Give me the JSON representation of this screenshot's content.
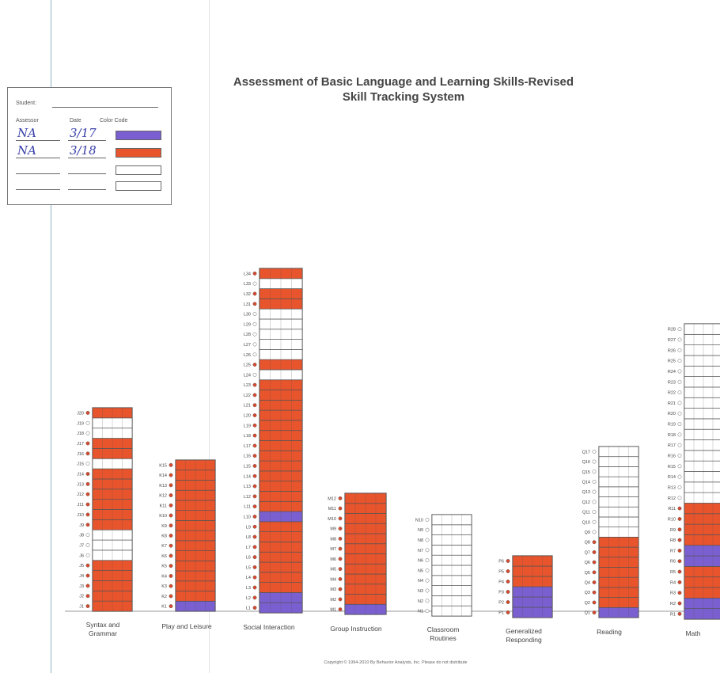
{
  "title": {
    "line1": "Assessment of Basic Language and Learning Skills-Revised",
    "line2": "Skill Tracking System"
  },
  "legend": {
    "student_label": "Student:",
    "assessor_label": "Assessor",
    "date_label": "Date",
    "color_code_label": "Color Code",
    "rows": [
      {
        "assessor": "NA",
        "date": "3/17",
        "color": "#7a5fd0"
      },
      {
        "assessor": "NA",
        "date": "3/18",
        "color": "#e8542c"
      },
      {
        "assessor": "",
        "date": "",
        "color": ""
      },
      {
        "assessor": "",
        "date": "",
        "color": ""
      }
    ]
  },
  "colors": {
    "purple": "#7a5fd0",
    "orange": "#e8542c",
    "empty": "#ffffff",
    "grid": "#555555"
  },
  "chart_data": {
    "type": "table",
    "status_codes": {
      "P": "purple (assessment 1)",
      "O": "orange (assessment 2)",
      "E": "not yet mastered"
    },
    "domains": [
      {
        "name": "Syntax and Grammar",
        "prefix": "J",
        "count": 20,
        "status": [
          "O",
          "O",
          "O",
          "O",
          "O",
          "E",
          "E",
          "E",
          "O",
          "O",
          "O",
          "O",
          "O",
          "O",
          "E",
          "O",
          "O",
          "E",
          "E",
          "O"
        ]
      },
      {
        "name": "Play and Leisure",
        "prefix": "K",
        "count": 15,
        "status": [
          "P",
          "O",
          "O",
          "O",
          "O",
          "O",
          "O",
          "O",
          "O",
          "O",
          "O",
          "O",
          "O",
          "O",
          "O"
        ]
      },
      {
        "name": "Social Interaction",
        "prefix": "L",
        "count": 34,
        "status": [
          "P",
          "P",
          "O",
          "O",
          "O",
          "O",
          "O",
          "O",
          "O",
          "P",
          "O",
          "O",
          "O",
          "O",
          "O",
          "O",
          "O",
          "O",
          "O",
          "O",
          "O",
          "O",
          "O",
          "E",
          "O",
          "E",
          "E",
          "E",
          "E",
          "E",
          "O",
          "O",
          "E",
          "O"
        ]
      },
      {
        "name": "Group Instruction",
        "prefix": "M",
        "count": 12,
        "status": [
          "P",
          "O",
          "O",
          "O",
          "O",
          "O",
          "O",
          "O",
          "O",
          "O",
          "O",
          "O"
        ]
      },
      {
        "name": "Classroom Routines",
        "prefix": "N",
        "count": 10,
        "status": [
          "E",
          "E",
          "E",
          "E",
          "E",
          "E",
          "E",
          "E",
          "E",
          "E"
        ]
      },
      {
        "name": "Generalized Responding",
        "prefix": "P",
        "count": 6,
        "status": [
          "P",
          "P",
          "P",
          "O",
          "O",
          "O"
        ]
      },
      {
        "name": "Reading",
        "prefix": "Q",
        "count": 17,
        "status": [
          "P",
          "O",
          "O",
          "O",
          "O",
          "O",
          "O",
          "O",
          "E",
          "E",
          "E",
          "E",
          "E",
          "E",
          "E",
          "E",
          "E"
        ]
      },
      {
        "name": "Math",
        "prefix": "R",
        "count": 28,
        "status": [
          "P",
          "P",
          "O",
          "O",
          "O",
          "P",
          "P",
          "O",
          "O",
          "O",
          "O",
          "E",
          "E",
          "E",
          "E",
          "E",
          "E",
          "E",
          "E",
          "E",
          "E",
          "E",
          "E",
          "E",
          "E",
          "E",
          "E",
          "E"
        ]
      }
    ]
  },
  "copyright": "Copyright © 1994-2010 By Behavior Analysts, Inc.   Please do not distribute"
}
